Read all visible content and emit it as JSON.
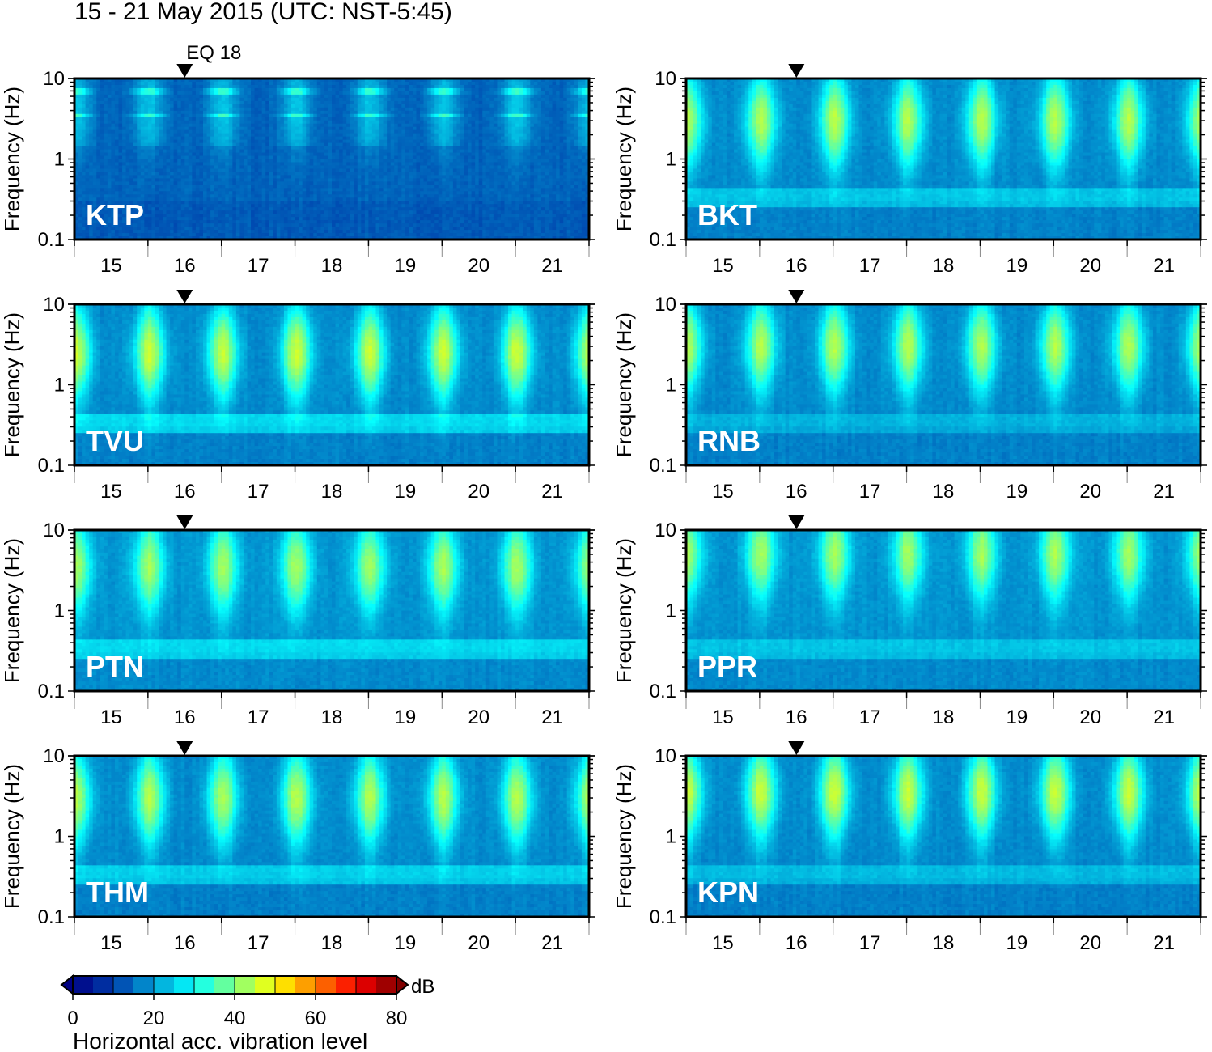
{
  "title": "15 - 21 May 2015 (UTC: NST-5:45)",
  "chart_data": {
    "type": "heatmap",
    "x_ticks": [
      "15",
      "16",
      "17",
      "18",
      "19",
      "20",
      "21"
    ],
    "y_ticks": [
      "0.1",
      "1",
      "10"
    ],
    "ylabel": "Frequency (Hz)",
    "y_scale": "log",
    "ylim": [
      0.1,
      10
    ],
    "event": {
      "label": "EQ 18",
      "day": 16.0
    },
    "panels": [
      {
        "station": "KTP",
        "base": 14,
        "day_peak": 6,
        "peak_freq": 4.0,
        "band_level": 22,
        "microseism": 0
      },
      {
        "station": "BKT",
        "base": 18,
        "day_peak": 26,
        "peak_freq": 3.0,
        "band_level": 0,
        "microseism": 6
      },
      {
        "station": "TVU",
        "base": 18,
        "day_peak": 28,
        "peak_freq": 2.5,
        "band_level": 0,
        "microseism": 8
      },
      {
        "station": "RNB",
        "base": 18,
        "day_peak": 26,
        "peak_freq": 3.0,
        "band_level": 0,
        "microseism": 4
      },
      {
        "station": "PTN",
        "base": 19,
        "day_peak": 24,
        "peak_freq": 3.5,
        "band_level": 0,
        "microseism": 7
      },
      {
        "station": "PPR",
        "base": 19,
        "day_peak": 24,
        "peak_freq": 5.0,
        "band_level": 0,
        "microseism": 5
      },
      {
        "station": "THM",
        "base": 18,
        "day_peak": 26,
        "peak_freq": 3.0,
        "band_level": 0,
        "microseism": 7
      },
      {
        "station": "KPN",
        "base": 18,
        "day_peak": 28,
        "peak_freq": 3.5,
        "band_level": 0,
        "microseism": 5
      }
    ],
    "colorbar": {
      "ticks": [
        "0",
        "20",
        "40",
        "60",
        "80"
      ],
      "range": [
        0,
        80
      ],
      "unit": "dB",
      "label": "Horizontal acc. vibration level"
    }
  }
}
